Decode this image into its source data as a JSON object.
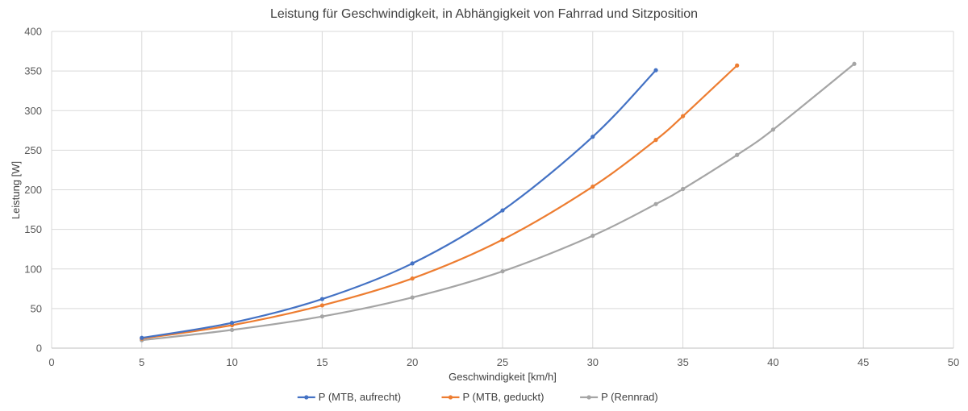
{
  "chart_data": {
    "type": "scatter",
    "title": "Leistung für Geschwindigkeit, in Abhängigkeit von Fahrrad und Sitzposition",
    "xlabel": "Geschwindigkeit [km/h]",
    "ylabel": "Leistung [W]",
    "xlim": [
      0,
      50
    ],
    "ylim": [
      0,
      400
    ],
    "xticks": [
      0,
      5,
      10,
      15,
      20,
      25,
      30,
      35,
      40,
      45,
      50
    ],
    "yticks": [
      0,
      50,
      100,
      150,
      200,
      250,
      300,
      350,
      400
    ],
    "grid": true,
    "smooth_lines": true,
    "legend_position": "bottom",
    "series": [
      {
        "name": "P (MTB, aufrecht)",
        "color": "#4472C4",
        "x": [
          5,
          10,
          15,
          20,
          25,
          30,
          33.5
        ],
        "y": [
          13,
          32,
          62,
          107,
          174,
          267,
          351
        ]
      },
      {
        "name": "P (MTB, geduckt)",
        "color": "#ED7D31",
        "x": [
          5,
          10,
          15,
          20,
          25,
          30,
          33.5,
          35,
          38
        ],
        "y": [
          12,
          29,
          54,
          88,
          137,
          204,
          263,
          293,
          357
        ]
      },
      {
        "name": "P (Rennrad)",
        "color": "#A5A5A5",
        "x": [
          5,
          10,
          15,
          20,
          25,
          30,
          33.5,
          35,
          38,
          40,
          44.5
        ],
        "y": [
          10,
          23,
          40,
          64,
          97,
          142,
          182,
          201,
          244,
          276,
          359
        ]
      }
    ]
  }
}
